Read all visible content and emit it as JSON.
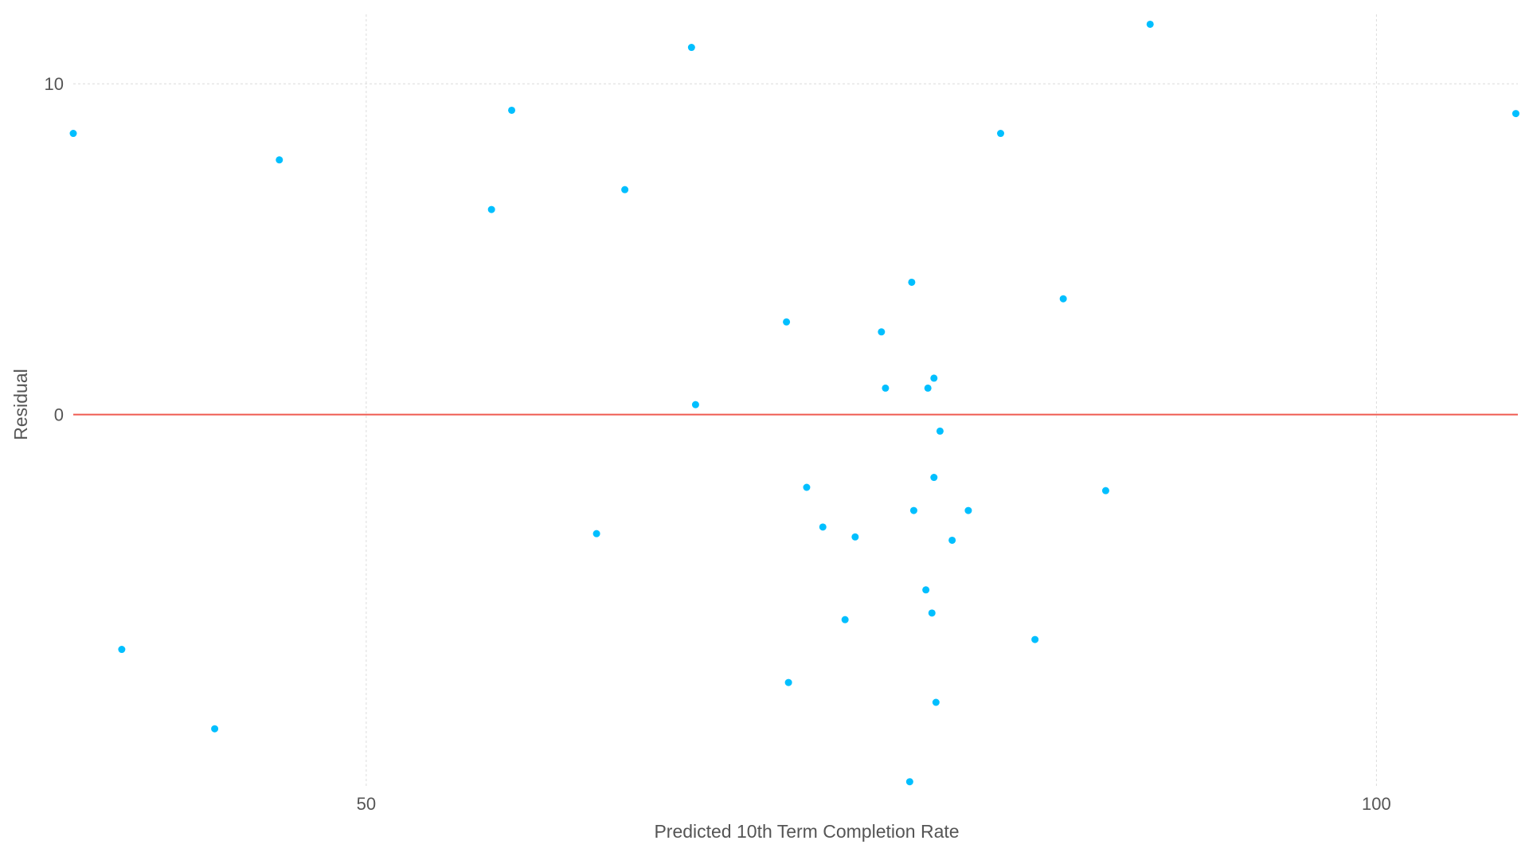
{
  "chart_data": {
    "type": "scatter",
    "title": "",
    "xlabel": "Predicted 10th Term Completion Rate",
    "ylabel": "Residual",
    "xlim": [
      35.5,
      107
    ],
    "ylim": [
      -11.3,
      12.1
    ],
    "xticks": [
      50,
      100
    ],
    "yticks": [
      0,
      10
    ],
    "grid": true,
    "legend": "none",
    "reference_line": {
      "y": 0,
      "color": "#ef5a50"
    },
    "point_color": "#00bfff",
    "series": [
      {
        "points": [
          {
            "x": 35.5,
            "y": 8.5
          },
          {
            "x": 37.9,
            "y": -7.1
          },
          {
            "x": 42.5,
            "y": -9.5
          },
          {
            "x": 45.7,
            "y": 7.7
          },
          {
            "x": 56.2,
            "y": 6.2
          },
          {
            "x": 57.2,
            "y": 9.2
          },
          {
            "x": 61.4,
            "y": -3.6
          },
          {
            "x": 62.8,
            "y": 6.8
          },
          {
            "x": 66.1,
            "y": 11.1
          },
          {
            "x": 66.3,
            "y": 0.3
          },
          {
            "x": 70.8,
            "y": 2.8
          },
          {
            "x": 70.9,
            "y": -8.1
          },
          {
            "x": 71.8,
            "y": -2.2
          },
          {
            "x": 72.6,
            "y": -3.4
          },
          {
            "x": 74.2,
            "y": -3.7
          },
          {
            "x": 73.7,
            "y": -6.2
          },
          {
            "x": 75.5,
            "y": 2.5
          },
          {
            "x": 75.7,
            "y": 0.8
          },
          {
            "x": 76.9,
            "y": -11.1
          },
          {
            "x": 77.0,
            "y": 4.0
          },
          {
            "x": 77.1,
            "y": -2.9
          },
          {
            "x": 77.7,
            "y": -5.3
          },
          {
            "x": 77.8,
            "y": 0.8
          },
          {
            "x": 78.0,
            "y": -6.0
          },
          {
            "x": 78.1,
            "y": 1.1
          },
          {
            "x": 78.1,
            "y": -1.9
          },
          {
            "x": 78.2,
            "y": -8.7
          },
          {
            "x": 78.4,
            "y": -0.5
          },
          {
            "x": 79.0,
            "y": -3.8
          },
          {
            "x": 79.8,
            "y": -2.9
          },
          {
            "x": 81.4,
            "y": 8.5
          },
          {
            "x": 83.1,
            "y": -6.8
          },
          {
            "x": 84.5,
            "y": 3.5
          },
          {
            "x": 86.6,
            "y": -2.3
          },
          {
            "x": 88.8,
            "y": 11.8
          },
          {
            "x": 106.9,
            "y": 9.1
          }
        ]
      }
    ]
  }
}
